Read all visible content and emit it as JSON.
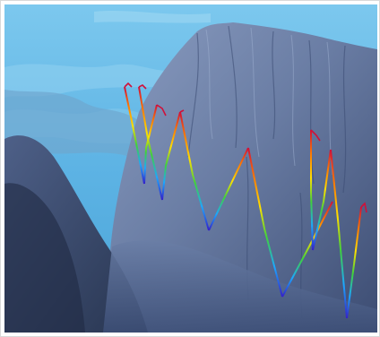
{
  "scene": {
    "description_tag": "3d-terrain-with-trajectory-lines",
    "colors": {
      "water": "#5fb6e6",
      "water_light": "#8dd0f2",
      "terrain_light": "#7f93b8",
      "terrain_mid": "#5b6e95",
      "terrain_dark": "#2e3d5e",
      "frame_border": "#d9d9d9"
    },
    "track_colormap": [
      "#d0103a",
      "#ff7a00",
      "#ffe000",
      "#3fd23a",
      "#1ca8ff",
      "#3420c8"
    ]
  }
}
